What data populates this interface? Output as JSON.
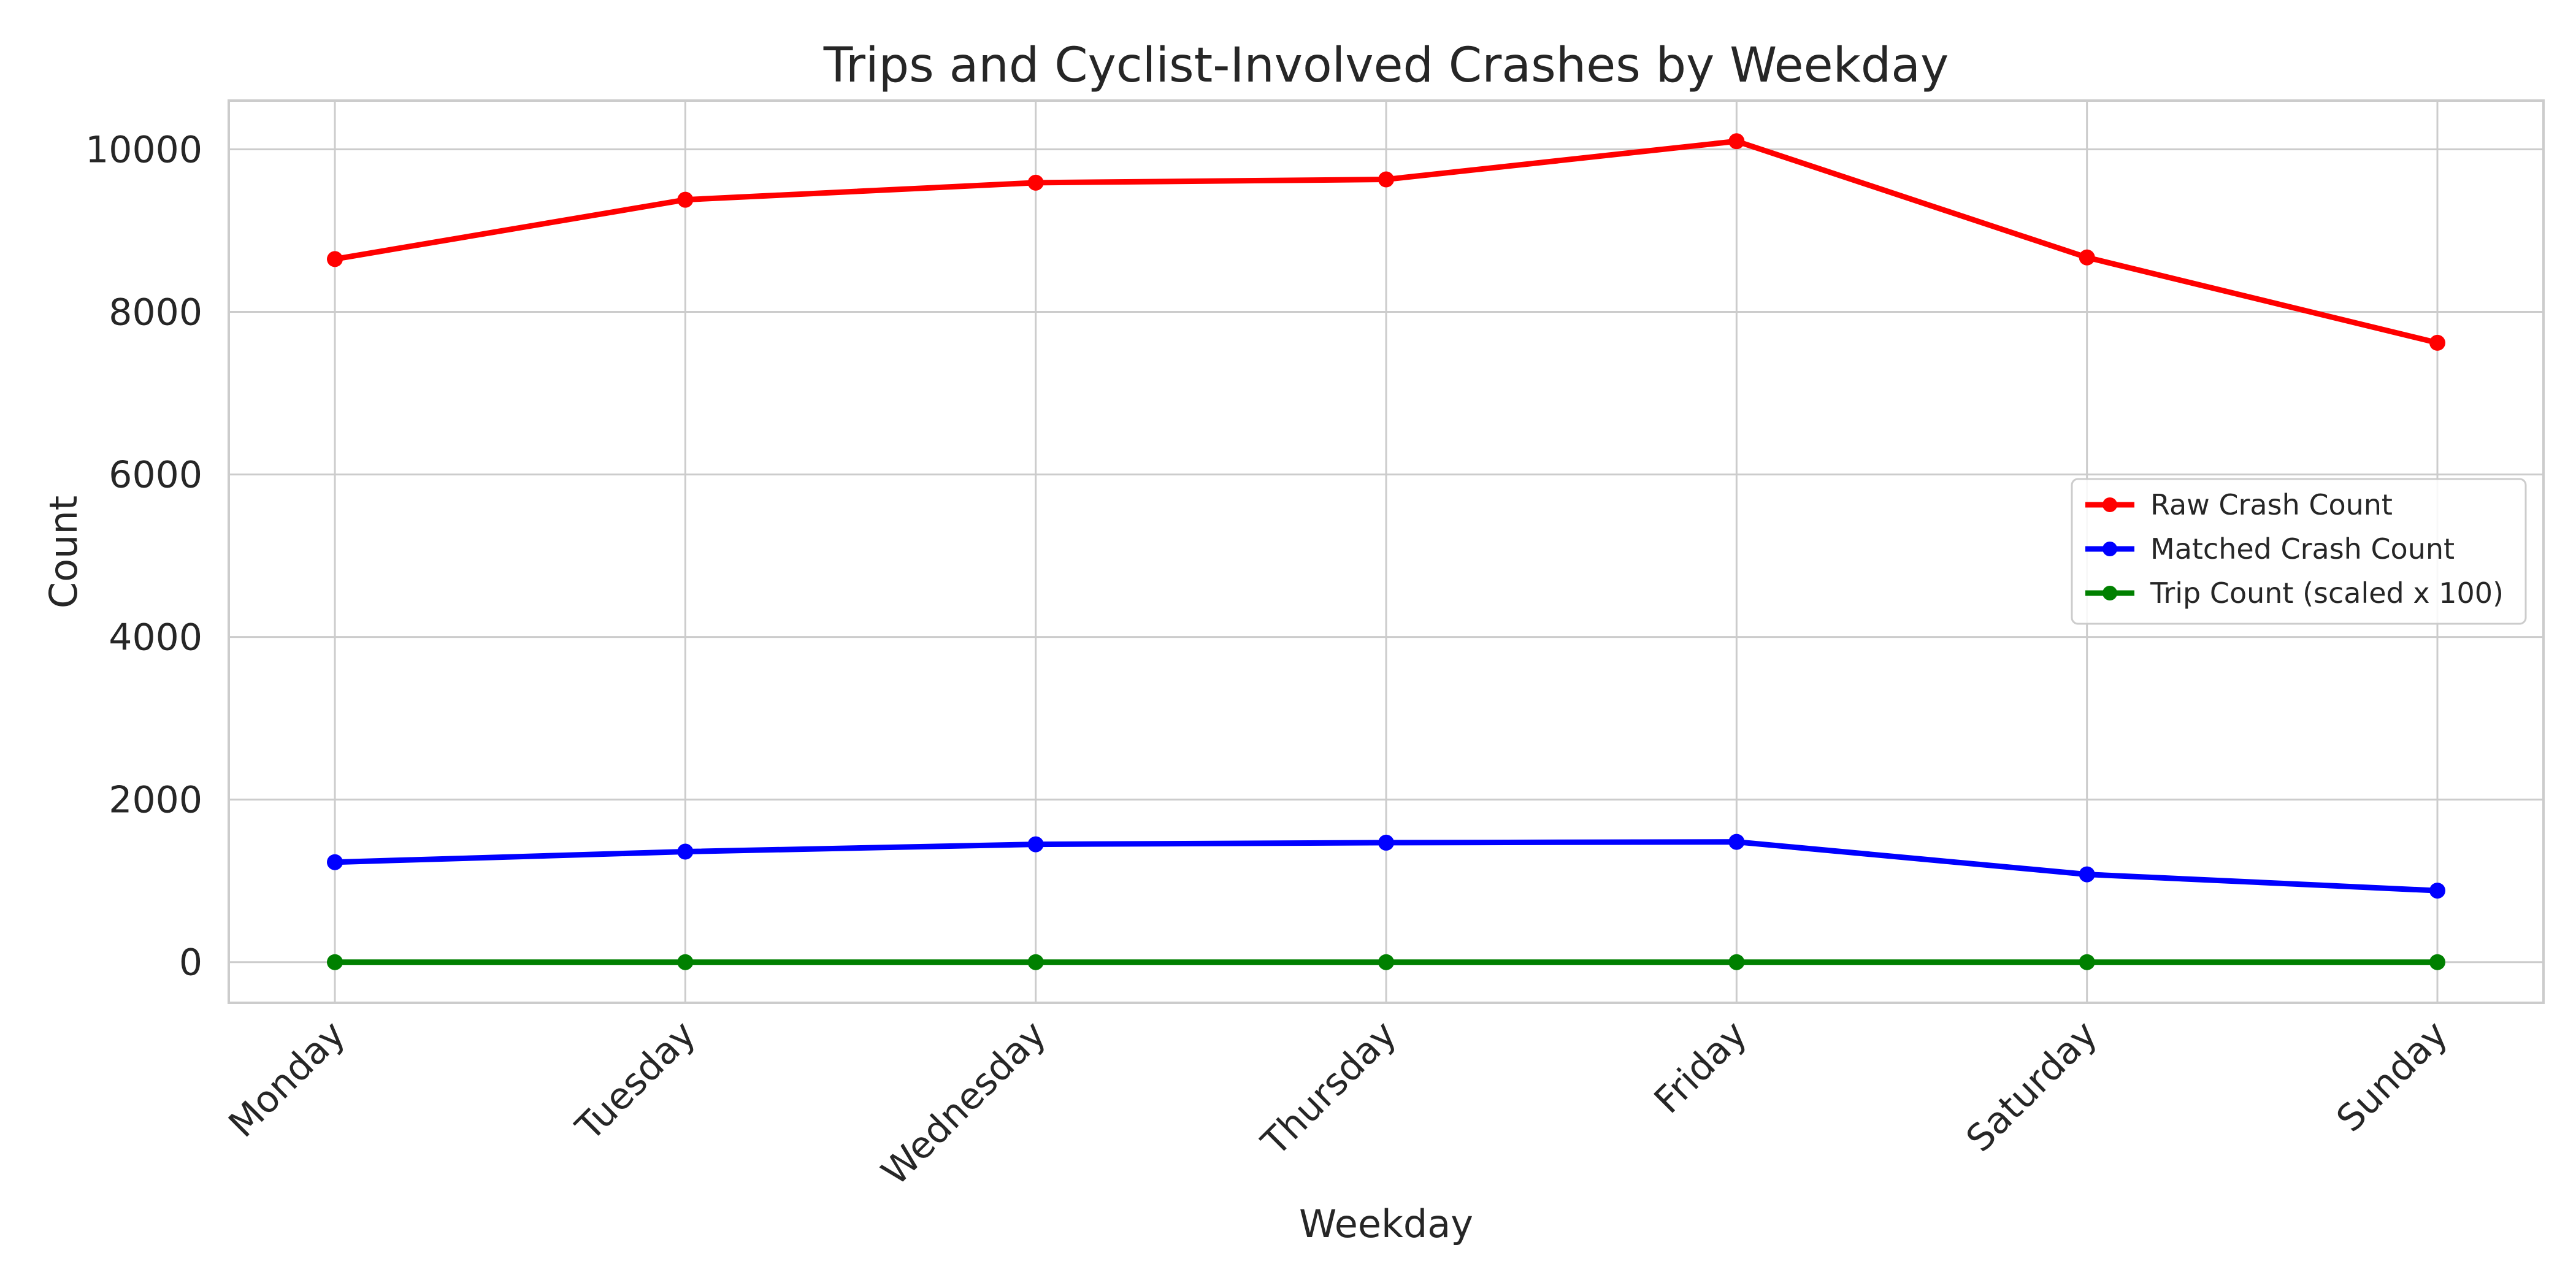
{
  "chart_data": {
    "type": "line",
    "title": "Trips and Cyclist-Involved Crashes by Weekday",
    "xlabel": "Weekday",
    "ylabel": "Count",
    "categories": [
      "Monday",
      "Tuesday",
      "Wednesday",
      "Thursday",
      "Friday",
      "Saturday",
      "Sunday"
    ],
    "ylim": [
      -500,
      10600
    ],
    "yticks": [
      0,
      2000,
      4000,
      6000,
      8000,
      10000
    ],
    "grid": true,
    "legend_position": "center-right",
    "series": [
      {
        "name": "Raw Crash Count",
        "color": "#ff0000",
        "marker": "circle",
        "values": [
          8650,
          9380,
          9590,
          9630,
          10100,
          8670,
          7620
        ]
      },
      {
        "name": "Matched Crash Count",
        "color": "#0000ff",
        "marker": "circle",
        "values": [
          1230,
          1360,
          1450,
          1470,
          1480,
          1080,
          880
        ]
      },
      {
        "name": "Trip Count (scaled x 100)",
        "color": "#008000",
        "marker": "circle",
        "values": [
          0,
          0,
          0,
          0,
          0,
          0,
          0
        ]
      }
    ]
  }
}
